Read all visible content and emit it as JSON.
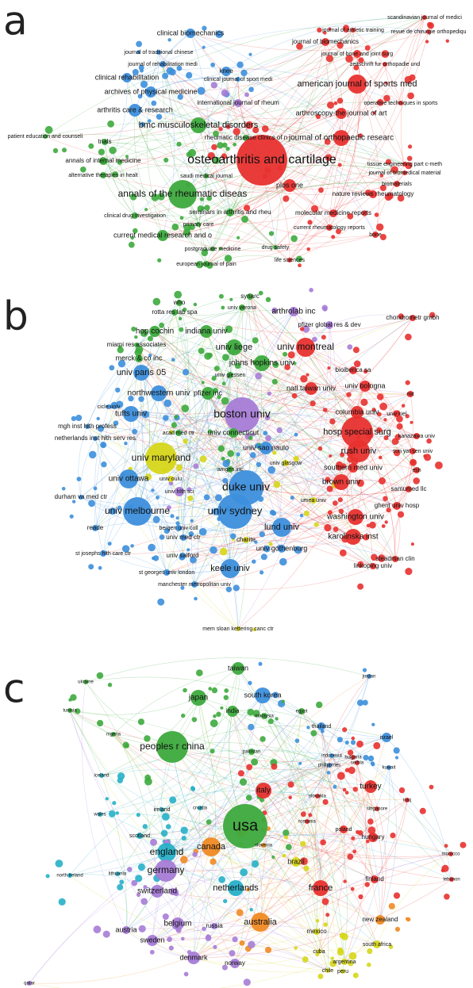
{
  "panels": [
    {
      "label": "a",
      "clusters": [
        "#3daa3d",
        "#3d8fdc",
        "#e8312f",
        "#d6d61a",
        "#a77cd6"
      ],
      "nodes": [
        {
          "label": "scandinavian journal of medici",
          "cluster": 2
        },
        {
          "label": "journal of athletic training",
          "cluster": 2
        },
        {
          "label": "revue de chirurgie orthopediqu",
          "cluster": 2
        },
        {
          "label": "clinical biomechanics",
          "cluster": 1
        },
        {
          "label": "journal of biomechanics",
          "cluster": 2
        },
        {
          "label": "journal of traditional chinese",
          "cluster": 1
        },
        {
          "label": "journal of bone and joint surg",
          "cluster": 2
        },
        {
          "label": "journal of rehabilitation medi",
          "cluster": 1
        },
        {
          "label": "zeitschrift fur orthopadie und",
          "cluster": 2
        },
        {
          "label": "clinical rehabilitation",
          "cluster": 1
        },
        {
          "label": "knee",
          "cluster": 1
        },
        {
          "label": "clinical journal of sport medi",
          "cluster": 1
        },
        {
          "label": "american journal of sports med",
          "cluster": 2
        },
        {
          "label": "archives of physical medicine",
          "cluster": 1
        },
        {
          "label": "international journal of rheum",
          "cluster": 4
        },
        {
          "label": "operative techniques in sports",
          "cluster": 2
        },
        {
          "label": "arthritis care & research",
          "cluster": 1
        },
        {
          "label": "arthroscopy-the journal of art",
          "cluster": 2
        },
        {
          "label": "bmc musculoskeletal disorders",
          "cluster": 0
        },
        {
          "label": "rheumatic disease clinics of n",
          "cluster": 0
        },
        {
          "label": "journal of orthopaedic researc",
          "cluster": 2
        },
        {
          "label": "patient education and counseli",
          "cluster": 0
        },
        {
          "label": "trials",
          "cluster": 0
        },
        {
          "label": "osteoarthritis and cartilage",
          "cluster": 2
        },
        {
          "label": "annals of internal medicine",
          "cluster": 0
        },
        {
          "label": "tissue engineering part c-meth",
          "cluster": 2
        },
        {
          "label": "journal of biomedical material",
          "cluster": 2
        },
        {
          "label": "alternative therapies in healt",
          "cluster": 0
        },
        {
          "label": "saudi medical journal",
          "cluster": 0
        },
        {
          "label": "biomaterials",
          "cluster": 2
        },
        {
          "label": "annals of the rheumatic diseas",
          "cluster": 0
        },
        {
          "label": "plos one",
          "cluster": 2
        },
        {
          "label": "nature reviews rheumatology",
          "cluster": 2
        },
        {
          "label": "seminars in arthritis and rheu",
          "cluster": 0
        },
        {
          "label": "molecular medicine reports",
          "cluster": 2
        },
        {
          "label": "clinical drug investigation",
          "cluster": 0
        },
        {
          "label": "primary care",
          "cluster": 0
        },
        {
          "label": "current rheumatology reports",
          "cluster": 2
        },
        {
          "label": "current medical research and o",
          "cluster": 0
        },
        {
          "label": "bone",
          "cluster": 2
        },
        {
          "label": "postgraduate medicine",
          "cluster": 0
        },
        {
          "label": "drug safety",
          "cluster": 0
        },
        {
          "label": "european journal of pain",
          "cluster": 0
        },
        {
          "label": "life sciences",
          "cluster": 2
        }
      ]
    },
    {
      "label": "b",
      "clusters": [
        "#3daa3d",
        "#e8312f",
        "#3d8fdc",
        "#d6d61a",
        "#a77cd6"
      ],
      "nodes": [
        {
          "label": "synarc",
          "cluster": 0
        },
        {
          "label": "who",
          "cluster": 0
        },
        {
          "label": "univ verona",
          "cluster": 0
        },
        {
          "label": "rotta res lab spa",
          "cluster": 0
        },
        {
          "label": "arthrolab inc",
          "cluster": 4
        },
        {
          "label": "chondrometr gmbh",
          "cluster": 1
        },
        {
          "label": "pfizer global res & dev",
          "cluster": 4
        },
        {
          "label": "hop cochin",
          "cluster": 0
        },
        {
          "label": "indiana univ",
          "cluster": 0
        },
        {
          "label": "miami res associates",
          "cluster": 0
        },
        {
          "label": "univ liege",
          "cluster": 0
        },
        {
          "label": "univ montreal",
          "cluster": 1
        },
        {
          "label": "merck & co inc",
          "cluster": 0
        },
        {
          "label": "johns hopkins univ",
          "cluster": 0
        },
        {
          "label": "bioiberica sa",
          "cluster": 1
        },
        {
          "label": "univ paris 05",
          "cluster": 2
        },
        {
          "label": "univ giessen",
          "cluster": 0
        },
        {
          "label": "northwestern univ",
          "cluster": 2
        },
        {
          "label": "pfizer inc",
          "cluster": 0
        },
        {
          "label": "natl taiwan univ",
          "cluster": 1
        },
        {
          "label": "univ bologna",
          "cluster": 1
        },
        {
          "label": "mit",
          "cluster": 1
        },
        {
          "label": "cicle univ",
          "cluster": 2
        },
        {
          "label": "tufts univ",
          "cluster": 2
        },
        {
          "label": "boston univ",
          "cluster": 4
        },
        {
          "label": "columbia univ",
          "cluster": 1
        },
        {
          "label": "univ kiel",
          "cluster": 1
        },
        {
          "label": "mgh inst hlth profess",
          "cluster": 2
        },
        {
          "label": "acad med ctr",
          "cluster": 0
        },
        {
          "label": "univ connecticut",
          "cluster": 0
        },
        {
          "label": "hosp special surg",
          "cluster": 1
        },
        {
          "label": "kanazawa univ",
          "cluster": 1
        },
        {
          "label": "netherlands inst hlth serv res",
          "cluster": 2
        },
        {
          "label": "univ sao paulo",
          "cluster": 2
        },
        {
          "label": "rush univ",
          "cluster": 1
        },
        {
          "label": "sun yat sen univ",
          "cluster": 1
        },
        {
          "label": "univ maryland",
          "cluster": 3
        },
        {
          "label": "amgen inc",
          "cluster": 0
        },
        {
          "label": "univ glasgow",
          "cluster": 3
        },
        {
          "label": "southern med univ",
          "cluster": 1
        },
        {
          "label": "esh",
          "cluster": 1
        },
        {
          "label": "univ ottawa",
          "cluster": 2
        },
        {
          "label": "univ oulu",
          "cluster": 3
        },
        {
          "label": "duke univ",
          "cluster": 2
        },
        {
          "label": "brown univ",
          "cluster": 1
        },
        {
          "label": "samumed llc",
          "cluster": 1
        },
        {
          "label": "durham va med ctr",
          "cluster": 2
        },
        {
          "label": "univ hlth sci",
          "cluster": 4
        },
        {
          "label": "univ melbourne",
          "cluster": 2
        },
        {
          "label": "univ sydney",
          "cluster": 2
        },
        {
          "label": "umea univ",
          "cluster": 3
        },
        {
          "label": "ghent univ hosp",
          "cluster": 1
        },
        {
          "label": "washington univ",
          "cluster": 1
        },
        {
          "label": "bergen univ coll",
          "cluster": 2
        },
        {
          "label": "lund univ",
          "cluster": 2
        },
        {
          "label": "reade",
          "cluster": 2
        },
        {
          "label": "charite",
          "cluster": 3
        },
        {
          "label": "karolinska inst",
          "cluster": 1
        },
        {
          "label": "univ med ctr",
          "cluster": 2
        },
        {
          "label": "univ gothenburg",
          "cluster": 2
        },
        {
          "label": "steadman clin",
          "cluster": 1
        },
        {
          "label": "st josephs hlth care ctr",
          "cluster": 2
        },
        {
          "label": "univ salford",
          "cluster": 2
        },
        {
          "label": "keele univ",
          "cluster": 2
        },
        {
          "label": "linkoping univ",
          "cluster": 1
        },
        {
          "label": "st georges univ london",
          "cluster": 2
        },
        {
          "label": "manchester metropolitan univ",
          "cluster": 2
        },
        {
          "label": "mem sloan kettering canc ctr",
          "cluster": 3
        }
      ]
    },
    {
      "label": "c",
      "clusters": [
        "#3daa3d",
        "#3d8fdc",
        "#27b0c8",
        "#e8312f",
        "#f08a24",
        "#a77cd6",
        "#d6d61a"
      ],
      "nodes": [
        {
          "label": "taiwan",
          "cluster": 0
        },
        {
          "label": "jordan",
          "cluster": 1
        },
        {
          "label": "ukraine",
          "cluster": 0
        },
        {
          "label": "south korea",
          "cluster": 1
        },
        {
          "label": "japan",
          "cluster": 0
        },
        {
          "label": "egypt",
          "cluster": 0
        },
        {
          "label": "india",
          "cluster": 0
        },
        {
          "label": "malaysia",
          "cluster": 0
        },
        {
          "label": "tunisia",
          "cluster": 0
        },
        {
          "label": "nigeria",
          "cluster": 0
        },
        {
          "label": "thailand",
          "cluster": 1
        },
        {
          "label": "israel",
          "cluster": 1
        },
        {
          "label": "peoples r china",
          "cluster": 0
        },
        {
          "label": "pakistan",
          "cluster": 0
        },
        {
          "label": "indonesia",
          "cluster": 1
        },
        {
          "label": "bulgaria",
          "cluster": 3
        },
        {
          "label": "serbia",
          "cluster": 3
        },
        {
          "label": "philippines",
          "cluster": 1
        },
        {
          "label": "kuwait",
          "cluster": 1
        },
        {
          "label": "iceland",
          "cluster": 2
        },
        {
          "label": "turkey",
          "cluster": 3
        },
        {
          "label": "italy",
          "cluster": 3
        },
        {
          "label": "slovakia",
          "cluster": 3
        },
        {
          "label": "iraq",
          "cluster": 3
        },
        {
          "label": "croatia",
          "cluster": 2
        },
        {
          "label": "singapore",
          "cluster": 3
        },
        {
          "label": "wales",
          "cluster": 2
        },
        {
          "label": "ireland",
          "cluster": 2
        },
        {
          "label": "romania",
          "cluster": 3
        },
        {
          "label": "poland",
          "cluster": 3
        },
        {
          "label": "usa",
          "cluster": 0
        },
        {
          "label": "hungary",
          "cluster": 3
        },
        {
          "label": "scotland",
          "cluster": 2
        },
        {
          "label": "canada",
          "cluster": 4
        },
        {
          "label": "slovenia",
          "cluster": 4
        },
        {
          "label": "england",
          "cluster": 2
        },
        {
          "label": "morocco",
          "cluster": 3
        },
        {
          "label": "brazil",
          "cluster": 6
        },
        {
          "label": "germany",
          "cluster": 5
        },
        {
          "label": "north ireland",
          "cluster": 2
        },
        {
          "label": "lithuania",
          "cluster": 2
        },
        {
          "label": "finland",
          "cluster": 3
        },
        {
          "label": "lebanon",
          "cluster": 3
        },
        {
          "label": "netherlands",
          "cluster": 2
        },
        {
          "label": "france",
          "cluster": 3
        },
        {
          "label": "switzerland",
          "cluster": 5
        },
        {
          "label": "belgium",
          "cluster": 5
        },
        {
          "label": "australia",
          "cluster": 4
        },
        {
          "label": "russia",
          "cluster": 5
        },
        {
          "label": "new zealand",
          "cluster": 4
        },
        {
          "label": "austria",
          "cluster": 5
        },
        {
          "label": "mexico",
          "cluster": 6
        },
        {
          "label": "sweden",
          "cluster": 5
        },
        {
          "label": "denmark",
          "cluster": 5
        },
        {
          "label": "norway",
          "cluster": 5
        },
        {
          "label": "cuba",
          "cluster": 6
        },
        {
          "label": "south africa",
          "cluster": 6
        },
        {
          "label": "argentina",
          "cluster": 6
        },
        {
          "label": "peru",
          "cluster": 6
        },
        {
          "label": "chile",
          "cluster": 6
        },
        {
          "label": "qatar",
          "cluster": 5
        }
      ]
    }
  ]
}
